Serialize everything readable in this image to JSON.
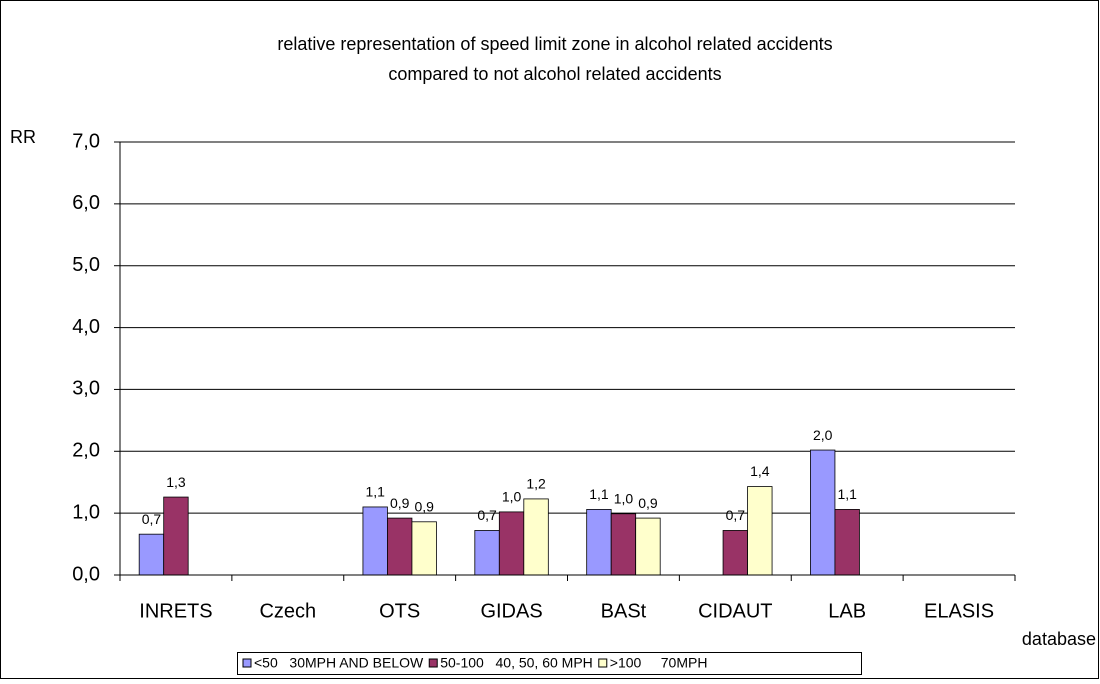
{
  "chart_data": {
    "type": "bar",
    "title": [
      "relative representation of speed limit zone in alcohol related accidents",
      "compared to not alcohol related accidents"
    ],
    "y_label": "RR",
    "x_label": "database",
    "categories": [
      "INRETS",
      "Czech",
      "OTS",
      "GIDAS",
      "BASt",
      "CIDAUT",
      "LAB",
      "ELASIS"
    ],
    "series": [
      {
        "name": "<50   30MPH AND BELOW",
        "color": "#9999ff",
        "values": [
          0.66,
          null,
          1.1,
          0.72,
          1.06,
          null,
          2.02,
          null
        ],
        "value_labels": [
          "0,7",
          null,
          "1,1",
          "0,7",
          "1,1",
          null,
          "2,0",
          null
        ]
      },
      {
        "name": "50-100   40, 50, 60 MPH",
        "color": "#993366",
        "values": [
          1.26,
          null,
          0.92,
          1.02,
          0.99,
          0.72,
          1.06,
          null
        ],
        "value_labels": [
          "1,3",
          null,
          "0,9",
          "1,0",
          "1,0",
          "0,7",
          "1,1",
          null
        ]
      },
      {
        "name": ">100     70MPH",
        "color": "#ffffcc",
        "values": [
          null,
          null,
          0.86,
          1.23,
          0.92,
          1.43,
          null,
          null
        ],
        "value_labels": [
          null,
          null,
          "0,9",
          "1,2",
          "0,9",
          "1,4",
          null,
          null
        ]
      }
    ],
    "ylim": [
      0,
      7
    ],
    "yticks": [
      {
        "value": 0,
        "label": "0,0"
      },
      {
        "value": 1,
        "label": "1,0"
      },
      {
        "value": 2,
        "label": "2,0"
      },
      {
        "value": 3,
        "label": "3,0"
      },
      {
        "value": 4,
        "label": "4,0"
      },
      {
        "value": 5,
        "label": "5,0"
      },
      {
        "value": 6,
        "label": "6,0"
      },
      {
        "value": 7,
        "label": "7,0"
      }
    ],
    "grid": true,
    "legend": "bottom"
  }
}
